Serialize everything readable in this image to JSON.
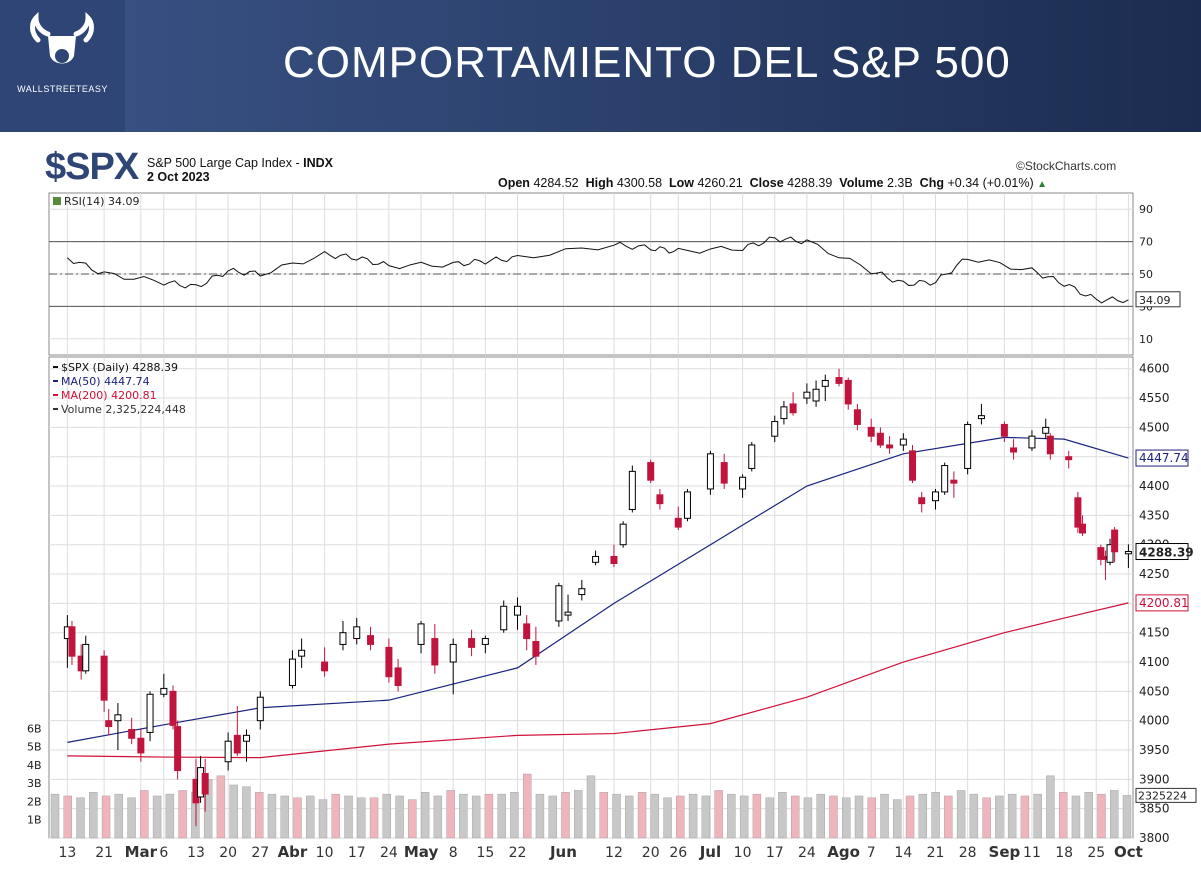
{
  "banner": {
    "title": "COMPORTAMIENTO DEL S&P 500",
    "logo_text": "WALLSTREETEASY"
  },
  "header": {
    "symbol": "$SPX",
    "name": "S&P 500 Large Cap Index",
    "exchange": "INDX",
    "date": "2 Oct 2023",
    "credit": "©StockCharts.com",
    "ohlc": {
      "open_label": "Open",
      "open": "4284.52",
      "high_label": "High",
      "high": "4300.58",
      "low_label": "Low",
      "low": "4260.21",
      "close_label": "Close",
      "close": "4288.39",
      "volume_label": "Volume",
      "volume": "2.3B",
      "chg_label": "Chg",
      "chg": "+0.34 (+0.01%)"
    }
  },
  "colors": {
    "up": "#000000",
    "down": "#c0143c",
    "ma50": "#1a237e",
    "ma200": "#d01038",
    "vol_up": "#c8c8c8",
    "vol_down": "#f0b4bc",
    "grid": "#dddddd"
  },
  "chart_data": [
    {
      "type": "line",
      "title": "RSI(14) 34.09",
      "ylim": [
        0,
        100
      ],
      "y_ticks": [
        10,
        30,
        50,
        70,
        90
      ],
      "last_value": "34.09",
      "x": [
        "Feb 13",
        "Feb 21",
        "Mar 6",
        "Mar 13",
        "Mar 20",
        "Mar 27",
        "Apr 10",
        "Apr 17",
        "Apr 24",
        "May 8",
        "May 15",
        "May 22",
        "Jun 12",
        "Jun 20",
        "Jun 26",
        "Jul 10",
        "Jul 17",
        "Jul 24",
        "Aug 7",
        "Aug 14",
        "Aug 21",
        "Aug 28",
        "Sep 11",
        "Sep 18",
        "Sep 25",
        "Oct 2"
      ],
      "values": [
        60,
        50,
        45,
        42,
        52,
        50,
        62,
        60,
        55,
        56,
        58,
        60,
        68,
        66,
        64,
        66,
        72,
        70,
        52,
        44,
        45,
        60,
        52,
        44,
        34,
        34.09
      ]
    },
    {
      "type": "candlestick",
      "title": "$SPX (Daily) 4288.39",
      "ylim": [
        3800,
        4620
      ],
      "y_ticks": [
        3800,
        3850,
        3900,
        3950,
        4000,
        4050,
        4100,
        4150,
        4200,
        4250,
        4300,
        4350,
        4400,
        4450,
        4500,
        4550,
        4600
      ],
      "x_ticks": [
        "13",
        "21",
        "Mar",
        "6",
        "13",
        "20",
        "27",
        "Abr",
        "10",
        "17",
        "24",
        "May",
        "8",
        "15",
        "22",
        "Jun",
        "12",
        "20",
        "26",
        "Jul",
        "10",
        "17",
        "24",
        "Ago",
        "7",
        "14",
        "21",
        "28",
        "Sep",
        "11",
        "18",
        "25",
        "Oct"
      ],
      "series": [
        {
          "name": "MA(50) 4447.74",
          "last": "4447.74",
          "x": [
            "Feb 13",
            "Mar 6",
            "Mar 27",
            "Apr 24",
            "May 22",
            "Jun 12",
            "Jul 3",
            "Jul 24",
            "Aug 14",
            "Sep 5",
            "Sep 18",
            "Oct 2"
          ],
          "values": [
            3963,
            3993,
            4022,
            4035,
            4090,
            4200,
            4300,
            4400,
            4455,
            4483,
            4480,
            4447.74
          ]
        },
        {
          "name": "MA(200) 4200.81",
          "last": "4200.81",
          "x": [
            "Feb 13",
            "Mar 6",
            "Mar 27",
            "Apr 24",
            "May 22",
            "Jun 12",
            "Jul 3",
            "Jul 24",
            "Aug 14",
            "Sep 5",
            "Sep 18",
            "Oct 2"
          ],
          "values": [
            3940,
            3938,
            3937,
            3960,
            3975,
            3978,
            3995,
            4040,
            4100,
            4150,
            4175,
            4200.81
          ]
        }
      ],
      "ohlc": [
        {
          "d": "Feb 13",
          "o": 4140,
          "h": 4180,
          "l": 4090,
          "c": 4160
        },
        {
          "d": "Feb 14",
          "o": 4160,
          "h": 4170,
          "l": 4095,
          "c": 4110
        },
        {
          "d": "Feb 16",
          "o": 4110,
          "h": 4130,
          "l": 4070,
          "c": 4085
        },
        {
          "d": "Feb 17",
          "o": 4085,
          "h": 4145,
          "l": 4080,
          "c": 4130
        },
        {
          "d": "Feb 21",
          "o": 4110,
          "h": 4120,
          "l": 4015,
          "c": 4035
        },
        {
          "d": "Feb 22",
          "o": 4000,
          "h": 4020,
          "l": 3975,
          "c": 3990
        },
        {
          "d": "Feb 24",
          "o": 4000,
          "h": 4030,
          "l": 3950,
          "c": 4010
        },
        {
          "d": "Feb 27",
          "o": 3985,
          "h": 4005,
          "l": 3960,
          "c": 3970
        },
        {
          "d": "Mar 1",
          "o": 3970,
          "h": 3985,
          "l": 3930,
          "c": 3945
        },
        {
          "d": "Mar 3",
          "o": 3980,
          "h": 4050,
          "l": 3965,
          "c": 4045
        },
        {
          "d": "Mar 6",
          "o": 4045,
          "h": 4080,
          "l": 4040,
          "c": 4055
        },
        {
          "d": "Mar 8",
          "o": 4050,
          "h": 4060,
          "l": 3985,
          "c": 3992
        },
        {
          "d": "Mar 9",
          "o": 3990,
          "h": 4000,
          "l": 3900,
          "c": 3915
        },
        {
          "d": "Mar 13",
          "o": 3900,
          "h": 3935,
          "l": 3820,
          "c": 3860
        },
        {
          "d": "Mar 14",
          "o": 3870,
          "h": 3940,
          "l": 3860,
          "c": 3920
        },
        {
          "d": "Mar 15",
          "o": 3910,
          "h": 3935,
          "l": 3845,
          "c": 3875
        },
        {
          "d": "Mar 20",
          "o": 3930,
          "h": 3980,
          "l": 3915,
          "c": 3965
        },
        {
          "d": "Mar 22",
          "o": 3975,
          "h": 4025,
          "l": 3940,
          "c": 3945
        },
        {
          "d": "Mar 24",
          "o": 3965,
          "h": 3985,
          "l": 3930,
          "c": 3975
        },
        {
          "d": "Mar 27",
          "o": 4000,
          "h": 4050,
          "l": 3985,
          "c": 4040
        },
        {
          "d": "Apr 3",
          "o": 4060,
          "h": 4120,
          "l": 4055,
          "c": 4105
        },
        {
          "d": "Apr 5",
          "o": 4110,
          "h": 4140,
          "l": 4090,
          "c": 4120
        },
        {
          "d": "Apr 10",
          "o": 4100,
          "h": 4125,
          "l": 4075,
          "c": 4085
        },
        {
          "d": "Apr 14",
          "o": 4130,
          "h": 4170,
          "l": 4120,
          "c": 4150
        },
        {
          "d": "Apr 17",
          "o": 4140,
          "h": 4175,
          "l": 4130,
          "c": 4160
        },
        {
          "d": "Apr 20",
          "o": 4145,
          "h": 4160,
          "l": 4120,
          "c": 4130
        },
        {
          "d": "Apr 24",
          "o": 4125,
          "h": 4140,
          "l": 4065,
          "c": 4075
        },
        {
          "d": "Apr 26",
          "o": 4090,
          "h": 4105,
          "l": 4050,
          "c": 4060
        },
        {
          "d": "May 1",
          "o": 4130,
          "h": 4170,
          "l": 4115,
          "c": 4165
        },
        {
          "d": "May 4",
          "o": 4140,
          "h": 4165,
          "l": 4080,
          "c": 4095
        },
        {
          "d": "May 8",
          "o": 4100,
          "h": 4140,
          "l": 4045,
          "c": 4130
        },
        {
          "d": "May 12",
          "o": 4140,
          "h": 4155,
          "l": 4110,
          "c": 4125
        },
        {
          "d": "May 15",
          "o": 4130,
          "h": 4145,
          "l": 4115,
          "c": 4140
        },
        {
          "d": "May 19",
          "o": 4155,
          "h": 4205,
          "l": 4150,
          "c": 4195
        },
        {
          "d": "May 22",
          "o": 4180,
          "h": 4210,
          "l": 4155,
          "c": 4195
        },
        {
          "d": "May 24",
          "o": 4165,
          "h": 4180,
          "l": 4120,
          "c": 4140
        },
        {
          "d": "May 26",
          "o": 4135,
          "h": 4160,
          "l": 4095,
          "c": 4110
        },
        {
          "d": "May 31",
          "o": 4170,
          "h": 4235,
          "l": 4160,
          "c": 4230
        },
        {
          "d": "Jun 2",
          "o": 4180,
          "h": 4215,
          "l": 4170,
          "c": 4185
        },
        {
          "d": "Jun 5",
          "o": 4215,
          "h": 4240,
          "l": 4205,
          "c": 4225
        },
        {
          "d": "Jun 8",
          "o": 4270,
          "h": 4290,
          "l": 4265,
          "c": 4280
        },
        {
          "d": "Jun 12",
          "o": 4280,
          "h": 4300,
          "l": 4262,
          "c": 4268
        },
        {
          "d": "Jun 14",
          "o": 4300,
          "h": 4340,
          "l": 4295,
          "c": 4335
        },
        {
          "d": "Jun 16",
          "o": 4360,
          "h": 4435,
          "l": 4355,
          "c": 4425
        },
        {
          "d": "Jun 20",
          "o": 4440,
          "h": 4445,
          "l": 4405,
          "c": 4410
        },
        {
          "d": "Jun 22",
          "o": 4385,
          "h": 4395,
          "l": 4360,
          "c": 4370
        },
        {
          "d": "Jun 26",
          "o": 4345,
          "h": 4365,
          "l": 4325,
          "c": 4330
        },
        {
          "d": "Jun 28",
          "o": 4345,
          "h": 4395,
          "l": 4340,
          "c": 4390
        },
        {
          "d": "Jul 3",
          "o": 4395,
          "h": 4460,
          "l": 4385,
          "c": 4455
        },
        {
          "d": "Jul 6",
          "o": 4440,
          "h": 4455,
          "l": 4395,
          "c": 4405
        },
        {
          "d": "Jul 10",
          "o": 4395,
          "h": 4420,
          "l": 4380,
          "c": 4415
        },
        {
          "d": "Jul 12",
          "o": 4430,
          "h": 4475,
          "l": 4425,
          "c": 4470
        },
        {
          "d": "Jul 17",
          "o": 4485,
          "h": 4520,
          "l": 4475,
          "c": 4510
        },
        {
          "d": "Jul 19",
          "o": 4515,
          "h": 4545,
          "l": 4505,
          "c": 4535
        },
        {
          "d": "Jul 21",
          "o": 4540,
          "h": 4560,
          "l": 4520,
          "c": 4525
        },
        {
          "d": "Jul 24",
          "o": 4550,
          "h": 4575,
          "l": 4540,
          "c": 4560
        },
        {
          "d": "Jul 26",
          "o": 4545,
          "h": 4580,
          "l": 4535,
          "c": 4565
        },
        {
          "d": "Jul 28",
          "o": 4570,
          "h": 4590,
          "l": 4545,
          "c": 4580
        },
        {
          "d": "Jul 31",
          "o": 4585,
          "h": 4600,
          "l": 4570,
          "c": 4575
        },
        {
          "d": "Aug 2",
          "o": 4580,
          "h": 4585,
          "l": 4530,
          "c": 4540
        },
        {
          "d": "Aug 4",
          "o": 4530,
          "h": 4540,
          "l": 4495,
          "c": 4505
        },
        {
          "d": "Aug 7",
          "o": 4500,
          "h": 4515,
          "l": 4475,
          "c": 4485
        },
        {
          "d": "Aug 9",
          "o": 4490,
          "h": 4500,
          "l": 4465,
          "c": 4470
        },
        {
          "d": "Aug 11",
          "o": 4470,
          "h": 4485,
          "l": 4455,
          "c": 4465
        },
        {
          "d": "Aug 14",
          "o": 4470,
          "h": 4490,
          "l": 4460,
          "c": 4480
        },
        {
          "d": "Aug 16",
          "o": 4460,
          "h": 4470,
          "l": 4405,
          "c": 4410
        },
        {
          "d": "Aug 18",
          "o": 4380,
          "h": 4390,
          "l": 4355,
          "c": 4370
        },
        {
          "d": "Aug 21",
          "o": 4375,
          "h": 4395,
          "l": 4360,
          "c": 4390
        },
        {
          "d": "Aug 23",
          "o": 4390,
          "h": 4440,
          "l": 4385,
          "c": 4435
        },
        {
          "d": "Aug 25",
          "o": 4410,
          "h": 4425,
          "l": 4380,
          "c": 4405
        },
        {
          "d": "Aug 28",
          "o": 4430,
          "h": 4510,
          "l": 4420,
          "c": 4505
        },
        {
          "d": "Aug 31",
          "o": 4515,
          "h": 4540,
          "l": 4505,
          "c": 4520
        },
        {
          "d": "Sep 5",
          "o": 4505,
          "h": 4510,
          "l": 4475,
          "c": 4485
        },
        {
          "d": "Sep 7",
          "o": 4465,
          "h": 4480,
          "l": 4445,
          "c": 4458
        },
        {
          "d": "Sep 11",
          "o": 4465,
          "h": 4495,
          "l": 4460,
          "c": 4485
        },
        {
          "d": "Sep 14",
          "o": 4490,
          "h": 4515,
          "l": 4480,
          "c": 4500
        },
        {
          "d": "Sep 15",
          "o": 4485,
          "h": 4490,
          "l": 4445,
          "c": 4455
        },
        {
          "d": "Sep 19",
          "o": 4450,
          "h": 4460,
          "l": 4430,
          "c": 4445
        },
        {
          "d": "Sep 21",
          "o": 4380,
          "h": 4390,
          "l": 4320,
          "c": 4330
        },
        {
          "d": "Sep 22",
          "o": 4335,
          "h": 4350,
          "l": 4315,
          "c": 4320
        },
        {
          "d": "Sep 26",
          "o": 4295,
          "h": 4300,
          "l": 4265,
          "c": 4275
        },
        {
          "d": "Sep 27",
          "o": 4280,
          "h": 4290,
          "l": 4240,
          "c": 4275
        },
        {
          "d": "Sep 28",
          "o": 4270,
          "h": 4310,
          "l": 4265,
          "c": 4300
        },
        {
          "d": "Sep 29",
          "o": 4325,
          "h": 4330,
          "l": 4270,
          "c": 4288
        },
        {
          "d": "Oct 2",
          "o": 4284.52,
          "h": 4300.58,
          "l": 4260.21,
          "c": 4288.39
        }
      ]
    },
    {
      "type": "bar",
      "title": "Volume 2,325,224,448",
      "last": "2325224",
      "ylim": [
        0,
        7
      ],
      "y_ticks": [
        "1B",
        "2B",
        "3B",
        "4B",
        "5B",
        "6B"
      ],
      "values": [
        2.4,
        2.3,
        2.2,
        2.5,
        2.3,
        2.4,
        2.2,
        2.6,
        2.3,
        2.4,
        2.6,
        2.5,
        3.2,
        3.4,
        2.9,
        2.8,
        2.5,
        2.4,
        2.3,
        2.2,
        2.3,
        2.1,
        2.4,
        2.3,
        2.2,
        2.2,
        2.4,
        2.3,
        2.1,
        2.5,
        2.3,
        2.6,
        2.4,
        2.3,
        2.4,
        2.4,
        2.5,
        3.5,
        2.4,
        2.3,
        2.5,
        2.6,
        3.4,
        2.5,
        2.4,
        2.3,
        2.5,
        2.4,
        2.2,
        2.3,
        2.4,
        2.3,
        2.6,
        2.4,
        2.3,
        2.4,
        2.2,
        2.5,
        2.3,
        2.2,
        2.4,
        2.3,
        2.2,
        2.3,
        2.2,
        2.4,
        2.1,
        2.3,
        2.4,
        2.5,
        2.3,
        2.6,
        2.4,
        2.2,
        2.3,
        2.4,
        2.3,
        2.4,
        3.4,
        2.5,
        2.3,
        2.5,
        2.4,
        2.6,
        2.33
      ]
    }
  ]
}
